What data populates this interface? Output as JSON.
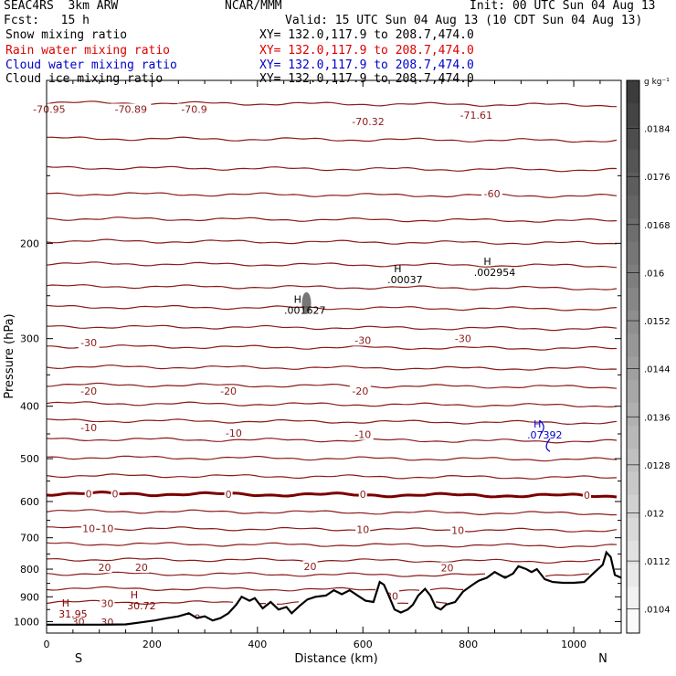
{
  "header": {
    "line1_left": "SEAC4RS  3km ARW",
    "line1_center": "NCAR/MMM",
    "line1_right": "Init: 00 UTC Sun 04 Aug 13",
    "line2_left": "Fcst:   15 h",
    "line2_right": "Valid: 15 UTC Sun 04 Aug 13 (10 CDT Sun 04 Aug 13)",
    "fields": [
      {
        "name": "Snow mixing ratio",
        "xy": "XY= 132.0,117.9 to 208.7,474.0",
        "color": "#000000"
      },
      {
        "name": "Rain water mixing ratio",
        "xy": "XY= 132.0,117.9 to 208.7,474.0",
        "color": "#dd0000"
      },
      {
        "name": "Cloud water mixing ratio",
        "xy": "XY= 132.0,117.9 to 208.7,474.0",
        "color": "#0000cc"
      },
      {
        "name": "Cloud ice mixing ratio",
        "xy": "XY= 132.0,117.9 to 208.7,474.0",
        "color": "#000000"
      }
    ]
  },
  "chart_data": {
    "type": "contour",
    "xlabel": "Distance (km)",
    "ylabel": "Pressure (hPa)",
    "xlim": [
      0,
      1090
    ],
    "ylim": [
      1050,
      100
    ],
    "y_scale": "log",
    "x_ticks": [
      "0",
      "200",
      "400",
      "600",
      "800",
      "1000"
    ],
    "x_tick_values": [
      0,
      200,
      400,
      600,
      800,
      1000
    ],
    "y_ticks": [
      "200",
      "300",
      "400",
      "500",
      "600",
      "700",
      "800",
      "900",
      "1000"
    ],
    "y_tick_values": [
      200,
      300,
      400,
      500,
      600,
      700,
      800,
      900,
      1000
    ],
    "left_end_label": "S",
    "right_end_label": "N",
    "temperature_levels_hpa": [
      {
        "p": 110,
        "label": ""
      },
      {
        "p": 128,
        "label": ""
      },
      {
        "p": 145,
        "label": ""
      },
      {
        "p": 162,
        "label": "-60"
      },
      {
        "p": 180,
        "label": ""
      },
      {
        "p": 198,
        "label": ""
      },
      {
        "p": 218,
        "label": ""
      },
      {
        "p": 240,
        "label": ""
      },
      {
        "p": 262,
        "label": ""
      },
      {
        "p": 285,
        "label": ""
      },
      {
        "p": 310,
        "label": "-30"
      },
      {
        "p": 338,
        "label": ""
      },
      {
        "p": 365,
        "label": "-20"
      },
      {
        "p": 395,
        "label": ""
      },
      {
        "p": 425,
        "label": "-10"
      },
      {
        "p": 460,
        "label": ""
      },
      {
        "p": 497,
        "label": ""
      },
      {
        "p": 537,
        "label": ""
      },
      {
        "p": 580,
        "label": "0"
      },
      {
        "p": 625,
        "label": ""
      },
      {
        "p": 672,
        "label": "10"
      },
      {
        "p": 718,
        "label": ""
      },
      {
        "p": 767,
        "label": ""
      },
      {
        "p": 815,
        "label": "20"
      },
      {
        "p": 868,
        "label": ""
      },
      {
        "p": 920,
        "label": "30"
      }
    ],
    "contour_labels": [
      {
        "text": "-70.95",
        "x": 5,
        "p": 113
      },
      {
        "text": "-70.89",
        "x": 160,
        "p": 113
      },
      {
        "text": "-70.9",
        "x": 280,
        "p": 113
      },
      {
        "text": "-70.32",
        "x": 610,
        "p": 119
      },
      {
        "text": "-71.61",
        "x": 815,
        "p": 116
      },
      {
        "text": "-60",
        "x": 845,
        "p": 162
      },
      {
        "text": "-30",
        "x": 80,
        "p": 305
      },
      {
        "text": "-30",
        "x": 600,
        "p": 302
      },
      {
        "text": "-30",
        "x": 790,
        "p": 300
      },
      {
        "text": "-20",
        "x": 80,
        "p": 375
      },
      {
        "text": "-20",
        "x": 345,
        "p": 375
      },
      {
        "text": "-20",
        "x": 595,
        "p": 375
      },
      {
        "text": "-10",
        "x": 80,
        "p": 438
      },
      {
        "text": "-10",
        "x": 355,
        "p": 448
      },
      {
        "text": "-10",
        "x": 600,
        "p": 451
      },
      {
        "text": "0",
        "x": 80,
        "p": 580
      },
      {
        "text": "0",
        "x": 130,
        "p": 580
      },
      {
        "text": "0",
        "x": 345,
        "p": 582
      },
      {
        "text": "0",
        "x": 600,
        "p": 582
      },
      {
        "text": "0",
        "x": 1025,
        "p": 584
      },
      {
        "text": "10",
        "x": 80,
        "p": 673
      },
      {
        "text": "10",
        "x": 115,
        "p": 673
      },
      {
        "text": "10",
        "x": 600,
        "p": 675
      },
      {
        "text": "10",
        "x": 780,
        "p": 678
      },
      {
        "text": "20",
        "x": 110,
        "p": 794
      },
      {
        "text": "20",
        "x": 180,
        "p": 794
      },
      {
        "text": "20",
        "x": 500,
        "p": 790
      },
      {
        "text": "20",
        "x": 760,
        "p": 795
      },
      {
        "text": "30",
        "x": 115,
        "p": 925
      },
      {
        "text": "30",
        "x": 515,
        "p": 935
      },
      {
        "text": "30",
        "x": 655,
        "p": 897
      },
      {
        "text": "30",
        "x": 280,
        "p": 985
      },
      {
        "text": "30",
        "x": 60,
        "p": 1000
      },
      {
        "text": "30",
        "x": 115,
        "p": 1003
      }
    ],
    "highs": [
      {
        "text": ".001627",
        "x": 490,
        "p": 268,
        "color": "#000000"
      },
      {
        "text": ".00037",
        "x": 680,
        "p": 235,
        "color": "#000000"
      },
      {
        "text": ".002954",
        "x": 850,
        "p": 228,
        "color": "#000000"
      },
      {
        "text": ".07392",
        "x": 945,
        "p": 455,
        "color": "#0000cc"
      },
      {
        "text": "31.95",
        "x": 50,
        "p": 975,
        "color": "#8b0000"
      },
      {
        "text": "30.72",
        "x": 180,
        "p": 942,
        "color": "#8b0000"
      }
    ],
    "terrain_surface": [
      {
        "x": 0,
        "p": 1013
      },
      {
        "x": 100,
        "p": 1013
      },
      {
        "x": 150,
        "p": 1012
      },
      {
        "x": 180,
        "p": 1003
      },
      {
        "x": 205,
        "p": 995
      },
      {
        "x": 230,
        "p": 985
      },
      {
        "x": 250,
        "p": 978
      },
      {
        "x": 270,
        "p": 965
      },
      {
        "x": 285,
        "p": 985
      },
      {
        "x": 300,
        "p": 978
      },
      {
        "x": 315,
        "p": 995
      },
      {
        "x": 330,
        "p": 985
      },
      {
        "x": 345,
        "p": 965
      },
      {
        "x": 360,
        "p": 930
      },
      {
        "x": 370,
        "p": 900
      },
      {
        "x": 385,
        "p": 915
      },
      {
        "x": 395,
        "p": 905
      },
      {
        "x": 410,
        "p": 945
      },
      {
        "x": 425,
        "p": 920
      },
      {
        "x": 440,
        "p": 950
      },
      {
        "x": 455,
        "p": 940
      },
      {
        "x": 465,
        "p": 965
      },
      {
        "x": 480,
        "p": 935
      },
      {
        "x": 495,
        "p": 910
      },
      {
        "x": 510,
        "p": 900
      },
      {
        "x": 530,
        "p": 895
      },
      {
        "x": 545,
        "p": 875
      },
      {
        "x": 560,
        "p": 890
      },
      {
        "x": 575,
        "p": 875
      },
      {
        "x": 590,
        "p": 895
      },
      {
        "x": 605,
        "p": 915
      },
      {
        "x": 620,
        "p": 920
      },
      {
        "x": 632,
        "p": 845
      },
      {
        "x": 640,
        "p": 855
      },
      {
        "x": 650,
        "p": 900
      },
      {
        "x": 660,
        "p": 950
      },
      {
        "x": 672,
        "p": 962
      },
      {
        "x": 685,
        "p": 950
      },
      {
        "x": 695,
        "p": 930
      },
      {
        "x": 705,
        "p": 895
      },
      {
        "x": 718,
        "p": 870
      },
      {
        "x": 728,
        "p": 895
      },
      {
        "x": 738,
        "p": 940
      },
      {
        "x": 748,
        "p": 950
      },
      {
        "x": 758,
        "p": 930
      },
      {
        "x": 775,
        "p": 920
      },
      {
        "x": 790,
        "p": 880
      },
      {
        "x": 808,
        "p": 855
      },
      {
        "x": 820,
        "p": 840
      },
      {
        "x": 835,
        "p": 830
      },
      {
        "x": 850,
        "p": 810
      },
      {
        "x": 860,
        "p": 820
      },
      {
        "x": 870,
        "p": 830
      },
      {
        "x": 885,
        "p": 815
      },
      {
        "x": 895,
        "p": 790
      },
      {
        "x": 910,
        "p": 800
      },
      {
        "x": 920,
        "p": 810
      },
      {
        "x": 930,
        "p": 800
      },
      {
        "x": 945,
        "p": 835
      },
      {
        "x": 960,
        "p": 845
      },
      {
        "x": 980,
        "p": 848
      },
      {
        "x": 1000,
        "p": 848
      },
      {
        "x": 1020,
        "p": 845
      },
      {
        "x": 1040,
        "p": 810
      },
      {
        "x": 1055,
        "p": 785
      },
      {
        "x": 1062,
        "p": 745
      },
      {
        "x": 1070,
        "p": 760
      },
      {
        "x": 1078,
        "p": 820
      },
      {
        "x": 1090,
        "p": 830
      }
    ],
    "colorbar": {
      "unit": "g kg⁻¹",
      "labels": [
        ".0184",
        ".0176",
        ".0168",
        ".016",
        ".0152",
        ".0144",
        ".0136",
        ".0128",
        ".012",
        ".0112",
        ".0104"
      ],
      "values": [
        0.0184,
        0.0176,
        0.0168,
        0.016,
        0.0152,
        0.0144,
        0.0136,
        0.0128,
        0.012,
        0.0112,
        0.0104
      ],
      "range": [
        0.01,
        0.0192
      ]
    },
    "colors": {
      "temperature": "#8b1a1a",
      "freezing": "#7a0000",
      "terrain": "#000000",
      "rain": "#dd0000",
      "cloud_water": "#0000cc"
    }
  }
}
